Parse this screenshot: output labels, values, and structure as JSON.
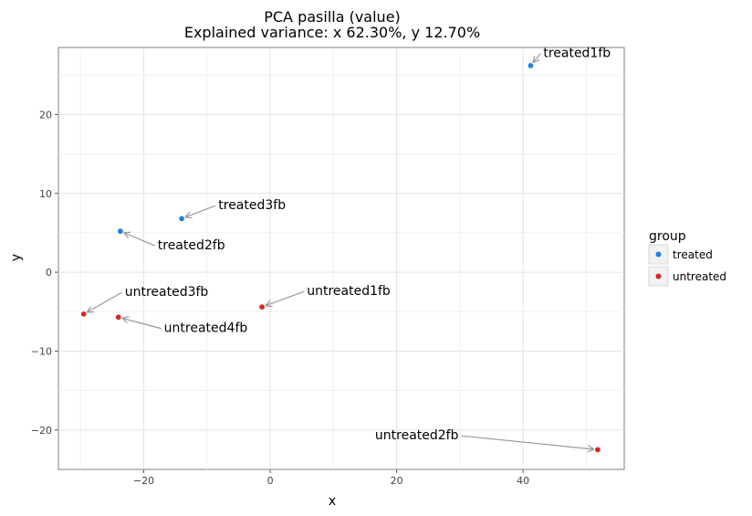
{
  "chart_data": {
    "type": "scatter",
    "title": "PCA pasilla (value)",
    "subtitle": "Explained variance: x 62.30%, y 12.70%",
    "xlabel": "x",
    "ylabel": "y",
    "xlim": [
      -33.5,
      56.0
    ],
    "ylim": [
      -25.0,
      28.5
    ],
    "xticks": [
      -20,
      0,
      20,
      40
    ],
    "yticks": [
      -20,
      -10,
      0,
      10,
      20
    ],
    "xtick_labels": [
      "−20",
      "0",
      "20",
      "40"
    ],
    "ytick_labels": [
      "−20",
      "−10",
      "0",
      "10",
      "20"
    ],
    "grid": true,
    "legend": {
      "title": "group",
      "placement": "right",
      "entries": [
        {
          "label": "treated",
          "color": "#1f7fe0"
        },
        {
          "label": "untreated",
          "color": "#d62728"
        }
      ]
    },
    "points": [
      {
        "label": "treated1fb",
        "group": "treated",
        "x": 41.2,
        "y": 26.2,
        "label_x": 43.2,
        "label_y": 27.3
      },
      {
        "label": "treated3fb",
        "group": "treated",
        "x": -14.0,
        "y": 6.8,
        "label_x": -8.2,
        "label_y": 8.0
      },
      {
        "label": "treated2fb",
        "group": "treated",
        "x": -23.7,
        "y": 5.2,
        "label_x": -17.8,
        "label_y": 2.9
      },
      {
        "label": "untreated3fb",
        "group": "untreated",
        "x": -29.5,
        "y": -5.3,
        "label_x": -23.0,
        "label_y": -3.0
      },
      {
        "label": "untreated4fb",
        "group": "untreated",
        "x": -24.0,
        "y": -5.7,
        "label_x": -16.8,
        "label_y": -7.6
      },
      {
        "label": "untreated1fb",
        "group": "untreated",
        "x": -1.3,
        "y": -4.4,
        "label_x": 5.8,
        "label_y": -2.9
      },
      {
        "label": "untreated2fb",
        "group": "untreated",
        "x": 51.8,
        "y": -22.5,
        "label_x": 29.8,
        "label_y": -21.2
      }
    ]
  }
}
